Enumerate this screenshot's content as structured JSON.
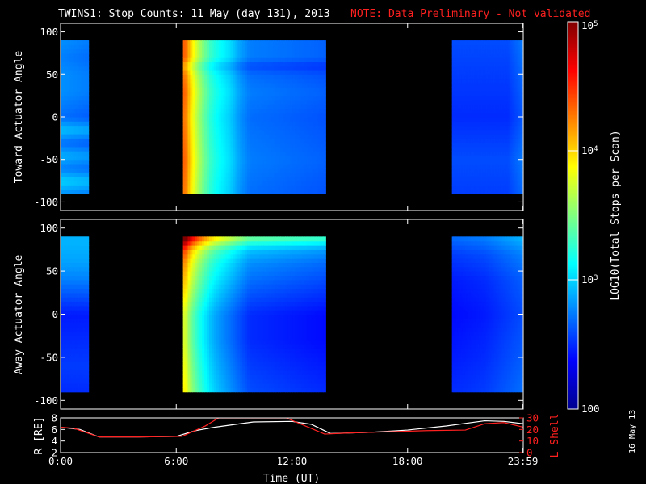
{
  "title": "TWINS1: Stop Counts: 11 May (day 131), 2013",
  "note": "NOTE: Data Preliminary - Not validated",
  "print_date": "16 May 13",
  "colors": {
    "background": "#000000",
    "axes": "#ffffff",
    "note": "#ff2020",
    "r_line": "#ffffff",
    "l_shell_line": "#ff2020"
  },
  "chart_data": [
    {
      "type": "heatmap",
      "name": "toward",
      "ylabel": "Toward Actuator Angle",
      "ylim": [
        -110,
        110
      ],
      "yticks": [
        -100,
        -50,
        0,
        50,
        100
      ],
      "ytick_labels": [
        "-100",
        "-50",
        "0",
        "50",
        "100"
      ],
      "xlim": [
        0,
        24
      ],
      "angle_range": [
        -90,
        90
      ],
      "log_range": [
        2,
        5
      ],
      "intervals": [
        {
          "start": 0.0,
          "end": 1.45,
          "profile": [
            [
              -90,
              2.8
            ],
            [
              -75,
              3.0
            ],
            [
              -60,
              2.75
            ],
            [
              -45,
              2.9
            ],
            [
              -30,
              2.7
            ],
            [
              -15,
              2.95
            ],
            [
              0,
              2.7
            ],
            [
              15,
              2.75
            ],
            [
              30,
              2.8
            ],
            [
              50,
              2.8
            ],
            [
              70,
              2.75
            ],
            [
              90,
              2.8
            ]
          ],
          "time_factor": [
            [
              0.0,
              1.0
            ],
            [
              1.45,
              0.98
            ]
          ]
        },
        {
          "start": 6.35,
          "end": 13.75,
          "profile": [
            [
              -90,
              2.75
            ],
            [
              -50,
              2.8
            ],
            [
              0,
              2.75
            ],
            [
              30,
              2.8
            ],
            [
              50,
              2.75
            ],
            [
              60,
              2.65
            ],
            [
              70,
              2.8
            ],
            [
              90,
              2.8
            ]
          ],
          "time_factor": [
            [
              6.35,
              1.55
            ],
            [
              6.5,
              1.55
            ],
            [
              6.7,
              1.45
            ],
            [
              7.0,
              1.35
            ],
            [
              7.4,
              1.25
            ],
            [
              7.8,
              1.17
            ],
            [
              8.3,
              1.12
            ],
            [
              8.8,
              1.08
            ],
            [
              9.3,
              1.02
            ],
            [
              9.8,
              0.98
            ],
            [
              13.75,
              0.95
            ]
          ]
        },
        {
          "start": 20.3,
          "end": 23.95,
          "profile": [
            [
              -90,
              2.55
            ],
            [
              -50,
              2.6
            ],
            [
              0,
              2.5
            ],
            [
              50,
              2.55
            ],
            [
              90,
              2.6
            ]
          ],
          "time_factor": [
            [
              20.3,
              1.0
            ],
            [
              23.2,
              1.0
            ],
            [
              23.95,
              1.05
            ]
          ]
        }
      ]
    },
    {
      "type": "heatmap",
      "name": "away",
      "ylabel": "Away Actuator Angle",
      "ylim": [
        -110,
        110
      ],
      "yticks": [
        -100,
        -50,
        0,
        50,
        100
      ],
      "ytick_labels": [
        "-100",
        "-50",
        "0",
        "50",
        "100"
      ],
      "xlim": [
        0,
        24
      ],
      "angle_range": [
        -90,
        90
      ],
      "log_range": [
        2,
        5
      ],
      "intervals": [
        {
          "start": 0.0,
          "end": 1.45,
          "profile": [
            [
              -90,
              2.5
            ],
            [
              -60,
              2.55
            ],
            [
              -30,
              2.5
            ],
            [
              0,
              2.45
            ],
            [
              20,
              2.6
            ],
            [
              40,
              2.75
            ],
            [
              60,
              2.85
            ],
            [
              80,
              2.9
            ],
            [
              90,
              2.9
            ]
          ],
          "time_factor": [
            [
              0.0,
              1.0
            ],
            [
              1.45,
              1.0
            ]
          ]
        },
        {
          "start": 6.35,
          "end": 13.75,
          "profile": [
            [
              -90,
              2.6
            ],
            [
              -60,
              2.55
            ],
            [
              -30,
              2.5
            ],
            [
              0,
              2.5
            ],
            [
              20,
              2.6
            ],
            [
              40,
              2.7
            ],
            [
              60,
              2.8
            ],
            [
              75,
              2.95
            ],
            [
              85,
              3.3
            ],
            [
              90,
              3.5
            ]
          ],
          "time_factor": [
            [
              6.35,
              1.5
            ],
            [
              6.5,
              1.5
            ],
            [
              6.7,
              1.4
            ],
            [
              7.0,
              1.32
            ],
            [
              7.4,
              1.24
            ],
            [
              7.8,
              1.17
            ],
            [
              8.3,
              1.12
            ],
            [
              8.8,
              1.08
            ],
            [
              9.3,
              1.04
            ],
            [
              9.8,
              1.0
            ],
            [
              13.75,
              0.96
            ]
          ]
        },
        {
          "start": 20.3,
          "end": 23.95,
          "profile": [
            [
              -90,
              2.5
            ],
            [
              -50,
              2.45
            ],
            [
              0,
              2.4
            ],
            [
              40,
              2.45
            ],
            [
              70,
              2.55
            ],
            [
              90,
              2.7
            ]
          ],
          "time_factor": [
            [
              20.3,
              1.0
            ],
            [
              22.0,
              1.02
            ],
            [
              23.95,
              1.08
            ]
          ]
        }
      ]
    },
    {
      "type": "line",
      "name": "orbit",
      "xlabel": "Time (UT)",
      "xlim": [
        0,
        24
      ],
      "xticks": [
        0,
        6,
        12,
        18,
        23.983
      ],
      "xtick_labels": [
        "0:00",
        "6:00",
        "12:00",
        "18:00",
        "23:59"
      ],
      "left_ylabel": "R [RE]",
      "left_ylim": [
        2,
        8
      ],
      "left_yticks": [
        2,
        4,
        6,
        8
      ],
      "left_ytick_labels": [
        "2",
        "4",
        "6",
        "8"
      ],
      "right_ylabel": "L Shell",
      "right_ylim": [
        0,
        30
      ],
      "right_yticks": [
        0,
        10,
        20,
        30
      ],
      "right_ytick_labels": [
        "0",
        "10",
        "20",
        "30"
      ],
      "series": [
        {
          "axis": "left",
          "color": "#ffffff",
          "x": [
            0,
            1,
            2,
            4,
            6,
            7,
            8,
            10,
            12,
            13,
            14,
            16,
            18,
            20,
            22,
            23,
            24
          ],
          "y": [
            6.4,
            6.0,
            4.7,
            4.7,
            4.8,
            5.8,
            6.4,
            7.3,
            7.4,
            6.9,
            5.3,
            5.5,
            5.9,
            6.6,
            7.5,
            7.4,
            7.0
          ]
        },
        {
          "axis": "right",
          "color": "#ff2020",
          "x": [
            0,
            0.7,
            2,
            4,
            6.3,
            7.5,
            8.2,
            11.7,
            13.7,
            15,
            17,
            19,
            21,
            22,
            23,
            24
          ],
          "y": [
            22,
            21,
            13.5,
            13.5,
            14,
            23,
            30,
            30,
            16,
            17,
            18,
            19,
            19.5,
            25,
            26,
            22
          ]
        }
      ]
    }
  ],
  "colorbar": {
    "label": "LOG10(Total Stops per Scan)",
    "range": [
      2,
      5
    ],
    "tick_labels": [
      {
        "value": 5,
        "base": "10",
        "exp": "5"
      },
      {
        "value": 4,
        "base": "10",
        "exp": "4"
      },
      {
        "value": 3,
        "base": "10",
        "exp": "3"
      },
      {
        "value": 2,
        "text": "100"
      }
    ]
  }
}
